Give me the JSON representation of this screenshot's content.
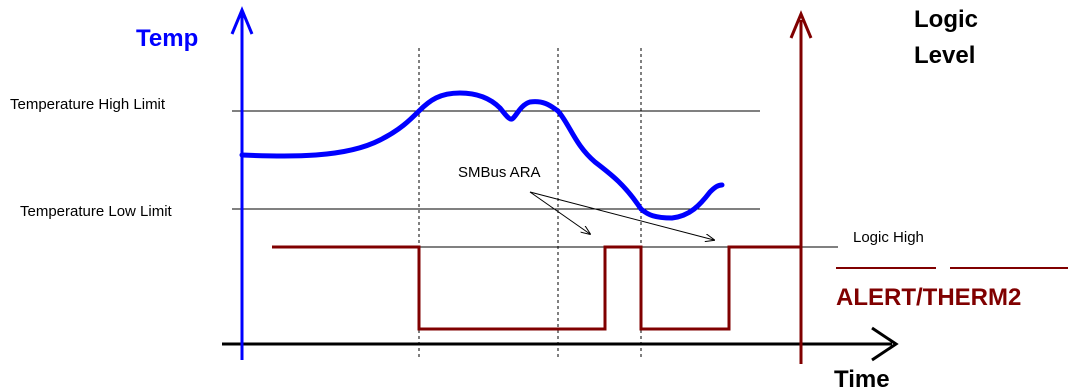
{
  "labels": {
    "temp_axis": "Temp",
    "logic_axis_line1": "Logic",
    "logic_axis_line2": "Level",
    "time_axis": "Time",
    "high_limit": "Temperature High Limit",
    "low_limit": "Temperature Low Limit",
    "smbus_ara": "SMBus ARA",
    "logic_high": "Logic High",
    "signal_name": "ALERT/THERM2"
  },
  "colors": {
    "temp_axis": "#0000ff",
    "temp_curve": "#0000ff",
    "logic_axis": "#800000",
    "signal": "#800000",
    "text": "#000000",
    "reference_lines": "#000000"
  }
}
